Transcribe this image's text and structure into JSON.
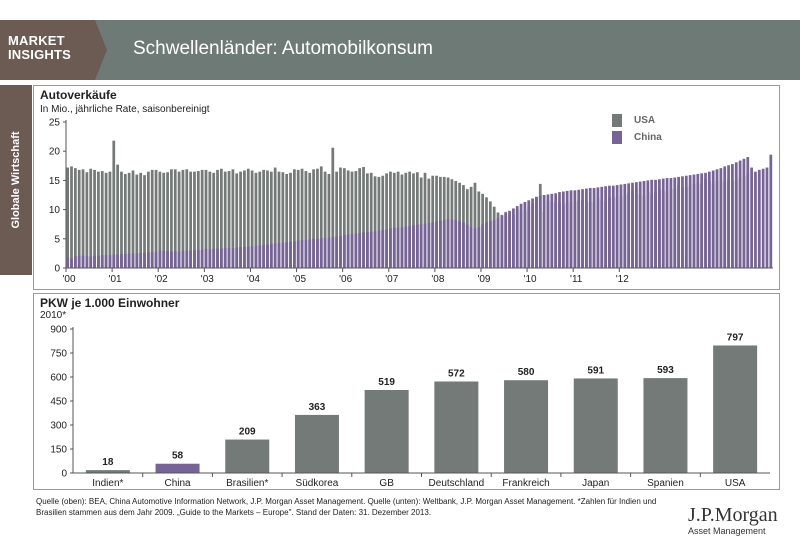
{
  "header": {
    "brand_line1": "MARKET",
    "brand_line2": "INSIGHTS",
    "title": "Schwellenländer: Automobilkonsum"
  },
  "sidebar": {
    "label": "Globale Wirtschaft"
  },
  "colors": {
    "usa": "#747a78",
    "china": "#776497",
    "header": "#6e7a76",
    "brand": "#6b5b53"
  },
  "chart_data": [
    {
      "type": "bar",
      "title": "Autoverkäufe",
      "subtitle": "In Mio., jährliche Rate, saisonbereinigt",
      "ylim": [
        0,
        25
      ],
      "yticks": [
        0,
        5,
        10,
        15,
        20,
        25
      ],
      "x_tick_labels": [
        "'00",
        "'01",
        "'02",
        "'03",
        "'04",
        "'05",
        "'06",
        "'07",
        "'08",
        "'09",
        "'10",
        "'11",
        "'12"
      ],
      "x_start": "2000-01",
      "frequency": "monthly",
      "legend": "top-right",
      "series": [
        {
          "name": "USA",
          "values": [
            17.2,
            17.4,
            17.1,
            16.8,
            16.9,
            16.4,
            17.0,
            16.8,
            16.5,
            16.6,
            16.3,
            16.5,
            21.8,
            17.7,
            16.5,
            16.1,
            16.3,
            16.7,
            16.0,
            16.3,
            15.9,
            16.5,
            16.8,
            16.8,
            16.5,
            16.3,
            16.4,
            16.9,
            16.9,
            16.5,
            16.8,
            16.9,
            16.5,
            16.5,
            16.6,
            16.8,
            16.8,
            16.5,
            16.3,
            16.8,
            17.0,
            16.5,
            16.6,
            16.9,
            16.2,
            16.5,
            16.7,
            17.0,
            16.7,
            16.3,
            16.5,
            16.8,
            16.7,
            16.5,
            17.2,
            16.5,
            16.4,
            16.1,
            16.3,
            16.9,
            16.8,
            17.0,
            16.6,
            16.3,
            16.9,
            17.0,
            17.4,
            16.5,
            16.1,
            20.6,
            16.5,
            17.2,
            17.1,
            16.7,
            16.5,
            16.6,
            17.1,
            17.3,
            16.2,
            16.3,
            15.7,
            15.6,
            15.8,
            16.2,
            16.5,
            16.3,
            16.5,
            16.0,
            16.3,
            16.5,
            16.2,
            16.4,
            15.5,
            16.3,
            15.3,
            15.8,
            15.8,
            15.6,
            15.6,
            15.5,
            15.2,
            14.9,
            14.6,
            14.2,
            13.5,
            13.9,
            14.6,
            13.1,
            12.7,
            12.1,
            11.4,
            10.5,
            9.5,
            9.1,
            9.6,
            9.3,
            9.1,
            10.1,
            9.8,
            9.9,
            10.5,
            11.0,
            12.1,
            14.4,
            9.6,
            11.4,
            11.4,
            11.1,
            11.2,
            10.8,
            11.2,
            11.3,
            11.4,
            11.6,
            11.7,
            11.5,
            11.3,
            11.2,
            12.1,
            11.6,
            11.4,
            12.1,
            12.3,
            12.0,
            12.3,
            12.5,
            12.9,
            13.2,
            13.6,
            12.5,
            12.4,
            13.1,
            12.6,
            13.0,
            13.5,
            13.3,
            13.1,
            13.5,
            13.6,
            14.3,
            13.8,
            13.8,
            14.1,
            14.4,
            14.6,
            14.3,
            15.3,
            14.9,
            14.4,
            14.9,
            15.0,
            14.7,
            15.1,
            14.9,
            15.0,
            15.4,
            15.7,
            16.2
          ],
          "note": "monthly, Jan 2000 – Dec 2012"
        },
        {
          "name": "China",
          "values": [
            1.9,
            1.6,
            2.0,
            2.1,
            2.1,
            2.0,
            2.0,
            2.1,
            2.1,
            2.2,
            2.2,
            2.2,
            2.3,
            2.3,
            2.4,
            2.4,
            2.5,
            2.5,
            2.5,
            2.6,
            2.6,
            2.7,
            2.7,
            2.8,
            3.0,
            2.9,
            2.9,
            2.8,
            2.9,
            2.8,
            2.9,
            3.0,
            3.0,
            3.1,
            3.1,
            3.1,
            3.3,
            3.2,
            3.3,
            3.3,
            3.3,
            3.4,
            3.4,
            3.4,
            3.5,
            3.6,
            3.6,
            3.7,
            3.7,
            3.8,
            3.9,
            3.9,
            4.0,
            4.1,
            4.2,
            4.3,
            4.3,
            4.4,
            4.5,
            4.6,
            4.7,
            4.8,
            4.8,
            4.9,
            5.0,
            5.0,
            5.1,
            5.1,
            5.2,
            5.3,
            5.4,
            5.5,
            5.7,
            5.7,
            5.8,
            5.9,
            6.0,
            6.1,
            6.1,
            6.2,
            6.3,
            6.4,
            6.5,
            6.6,
            6.8,
            6.9,
            6.9,
            7.0,
            7.1,
            7.2,
            7.3,
            7.4,
            7.5,
            7.6,
            7.7,
            7.8,
            8.0,
            8.1,
            8.2,
            8.4,
            8.3,
            8.2,
            8.0,
            7.8,
            7.4,
            7.0,
            6.8,
            7.0,
            7.5,
            7.8,
            8.0,
            8.2,
            8.6,
            8.9,
            9.3,
            9.8,
            10.2,
            10.6,
            11.0,
            11.3,
            11.6,
            11.9,
            12.2,
            12.4,
            12.5,
            12.6,
            12.7,
            12.8,
            13.0,
            13.1,
            13.2,
            13.3,
            13.3,
            13.4,
            13.5,
            13.6,
            13.7,
            13.7,
            13.8,
            13.9,
            14.0,
            14.1,
            14.1,
            14.2,
            14.3,
            14.4,
            14.5,
            14.6,
            14.7,
            14.8,
            14.9,
            15.0,
            15.1,
            15.1,
            15.2,
            15.3,
            15.4,
            15.4,
            15.5,
            15.6,
            15.7,
            15.8,
            15.9,
            16.0,
            16.1,
            16.2,
            16.3,
            16.5,
            16.7,
            16.9,
            17.1,
            17.4,
            17.6,
            17.8,
            18.1,
            18.4,
            18.7,
            19.0,
            17.2,
            16.5,
            16.8,
            17.0,
            17.2,
            19.4
          ],
          "note": "monthly, Jan 2000 – Dec 2012"
        }
      ]
    },
    {
      "type": "bar",
      "title": "PKW je 1.000 Einwohner",
      "subtitle": "2010*",
      "ylim": [
        0,
        900
      ],
      "yticks": [
        0,
        150,
        300,
        450,
        600,
        750,
        900
      ],
      "categories": [
        "Indien*",
        "China",
        "Brasilien*",
        "Südkorea",
        "GB",
        "Deutschland",
        "Frankreich",
        "Japan",
        "Spanien",
        "USA"
      ],
      "values": [
        18,
        58,
        209,
        363,
        519,
        572,
        580,
        591,
        593,
        797
      ],
      "highlight": "China"
    }
  ],
  "footnote": "Quelle (oben): BEA, China Automotive Information Network, J.P. Morgan Asset Management. Quelle (unten): Weltbank, J.P. Morgan Asset Management. *Zahlen für Indien und Brasilien stammen aus dem Jahr 2009. „Guide to the Markets – Europe\". Stand der Daten: 31. Dezember 2013.",
  "branding": {
    "name": "J.P.Morgan",
    "sub": "Asset Management"
  }
}
